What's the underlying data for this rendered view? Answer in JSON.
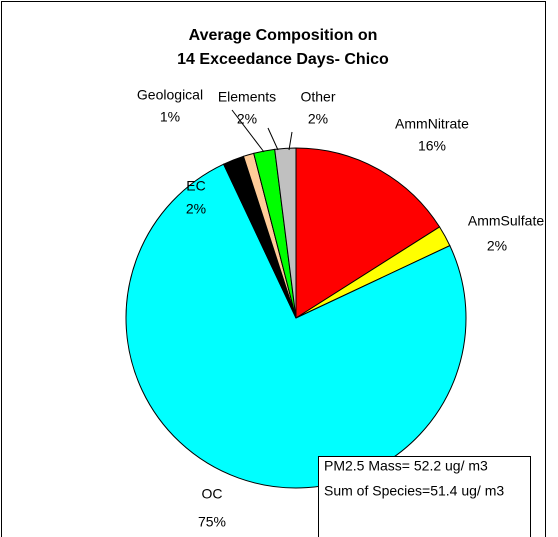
{
  "chart_data": {
    "type": "pie",
    "title": [
      "Average Composition on",
      "14 Exceedance Days- Chico"
    ],
    "categories": [
      "AmmNitrate",
      "AmmSulfate",
      "OC",
      "EC",
      "Geological",
      "Elements",
      "Other"
    ],
    "values": [
      16,
      2,
      75,
      2,
      1,
      2,
      2
    ],
    "value_labels": [
      "16%",
      "2%",
      "75%",
      "2%",
      "1%",
      "2%",
      "2%"
    ],
    "colors": [
      "#ff0000",
      "#ffff00",
      "#00ffff",
      "#000000",
      "#ffcc99",
      "#00ff00",
      "#c0c0c0"
    ],
    "annotations": [
      "PM2.5 Mass= 52.2 ug/ m3",
      "Sum of Species=51.4 ug/ m3"
    ]
  }
}
